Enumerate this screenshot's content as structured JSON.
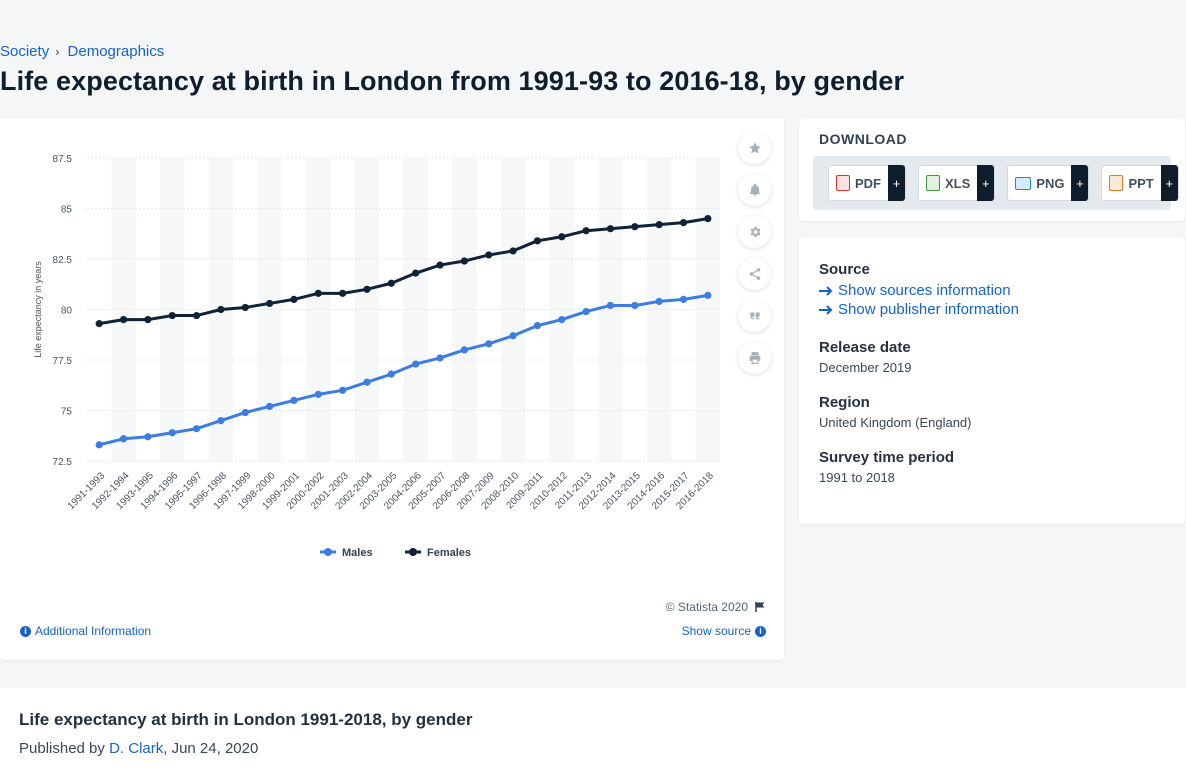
{
  "breadcrumb": {
    "items": [
      "Society",
      "Demographics"
    ],
    "separator": "›"
  },
  "page_title": "Life expectancy at birth in London from 1991-93 to 2016-18, by gender",
  "chart_data": {
    "type": "line",
    "title": "",
    "xlabel": "",
    "ylabel": "Life expectancy in years",
    "ylim": [
      72.5,
      87.5
    ],
    "yticks": [
      "72.5",
      "75",
      "77.5",
      "80",
      "82.5",
      "85",
      "87.5"
    ],
    "categories": [
      "1991-1993",
      "1992-1994",
      "1993-1995",
      "1994-1996",
      "1995-1997",
      "1996-1998",
      "1997-1999",
      "1998-2000",
      "1999-2001",
      "2000-2002",
      "2001-2003",
      "2002-2004",
      "2003-2005",
      "2004-2006",
      "2005-2007",
      "2006-2008",
      "2007-2009",
      "2008-2010",
      "2009-2011",
      "2010-2012",
      "2011-2013",
      "2012-2014",
      "2013-2015",
      "2014-2016",
      "2015-2017",
      "2016-2018"
    ],
    "series": [
      {
        "name": "Males",
        "color": "#3b7de0",
        "values": [
          73.3,
          73.6,
          73.7,
          73.9,
          74.1,
          74.5,
          74.9,
          75.2,
          75.5,
          75.8,
          76.0,
          76.4,
          76.8,
          77.3,
          77.6,
          78.0,
          78.3,
          78.7,
          79.2,
          79.5,
          79.9,
          80.2,
          80.2,
          80.4,
          80.5,
          80.7
        ]
      },
      {
        "name": "Females",
        "color": "#0f2236",
        "values": [
          79.3,
          79.5,
          79.5,
          79.7,
          79.7,
          80.0,
          80.1,
          80.3,
          80.5,
          80.8,
          80.8,
          81.0,
          81.3,
          81.8,
          82.2,
          82.4,
          82.7,
          82.9,
          83.4,
          83.6,
          83.9,
          84.0,
          84.1,
          84.2,
          84.3,
          84.5
        ]
      }
    ],
    "legend": "bottom-center"
  },
  "chart_footer": {
    "copyright": "© Statista 2020",
    "additional_info": "Additional Information",
    "show_source": "Show source"
  },
  "download": {
    "title": "DOWNLOAD",
    "buttons": [
      {
        "label": "PDF",
        "icon": "pdf-icon",
        "color": "#d9352c"
      },
      {
        "label": "XLS",
        "icon": "xls-icon",
        "color": "#3d9b3d"
      },
      {
        "label": "PNG",
        "icon": "png-icon",
        "color": "#2f7fd0"
      },
      {
        "label": "PPT",
        "icon": "ppt-icon",
        "color": "#e07b22"
      }
    ],
    "plus": "+"
  },
  "meta": {
    "source_heading": "Source",
    "show_sources": "Show sources information",
    "show_publisher": "Show publisher information",
    "release_heading": "Release date",
    "release_value": "December 2019",
    "region_heading": "Region",
    "region_value": "United Kingdom (England)",
    "survey_heading": "Survey time period",
    "survey_value": "1991 to 2018"
  },
  "bottom": {
    "title": "Life expectancy at birth in London 1991-2018, by gender",
    "published_prefix": "Published by",
    "author": "D. Clark",
    "date": ", Jun 24, 2020"
  }
}
